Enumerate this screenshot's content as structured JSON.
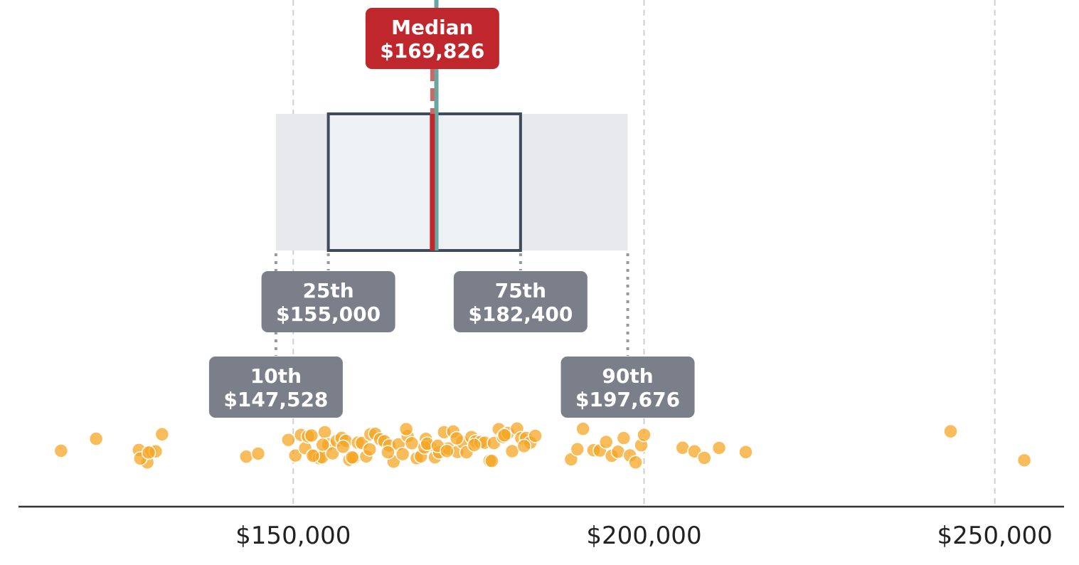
{
  "chart_data": {
    "type": "scatter",
    "title": "",
    "xlabel": "",
    "ylabel": "",
    "xlim": [
      108200,
      262000
    ],
    "grid": "vertical dashed",
    "x_ticks": [
      {
        "value": 150000,
        "label": "$150,000"
      },
      {
        "value": 200000,
        "label": "$200,000"
      },
      {
        "value": 250000,
        "label": "$250,000"
      }
    ],
    "percentiles": {
      "p10": {
        "value": 147528,
        "title": "10th",
        "label": "$147,528"
      },
      "p25": {
        "value": 155000,
        "title": "25th",
        "label": "$155,000"
      },
      "median": {
        "value": 169826,
        "title": "Median",
        "label": "$169,826"
      },
      "p75": {
        "value": 182400,
        "title": "75th",
        "label": "$182,400"
      },
      "p90": {
        "value": 197676,
        "title": "90th",
        "label": "$197,676"
      }
    },
    "reference_value": 170400,
    "points": [
      116900,
      121900,
      128000,
      129200,
      129700,
      130400,
      131300,
      128200,
      129400,
      143300,
      145000,
      149300,
      150300,
      151100,
      151700,
      152100,
      152600,
      153000,
      153700,
      154100,
      154500,
      155000,
      155600,
      156200,
      156900,
      157500,
      158000,
      158600,
      159200,
      159800,
      160400,
      161000,
      161700,
      162400,
      163000,
      163700,
      164300,
      165000,
      165600,
      166300,
      166900,
      167600,
      168200,
      168900,
      169500,
      170200,
      170800,
      171500,
      172100,
      172800,
      173400,
      174100,
      174700,
      175400,
      176000,
      176700,
      177300,
      178000,
      178600,
      179300,
      179900,
      180600,
      181200,
      181900,
      182500,
      183200,
      183800,
      184500,
      152800,
      154200,
      157100,
      158400,
      160900,
      163500,
      166100,
      168700,
      169100,
      170600,
      171900,
      173300,
      175800,
      178300,
      180100,
      182900,
      189600,
      190500,
      191300,
      192800,
      193700,
      194600,
      195400,
      196300,
      197100,
      198000,
      198800,
      199600,
      200000,
      205500,
      207200,
      208600,
      210700,
      214500,
      243700,
      254200
    ]
  }
}
